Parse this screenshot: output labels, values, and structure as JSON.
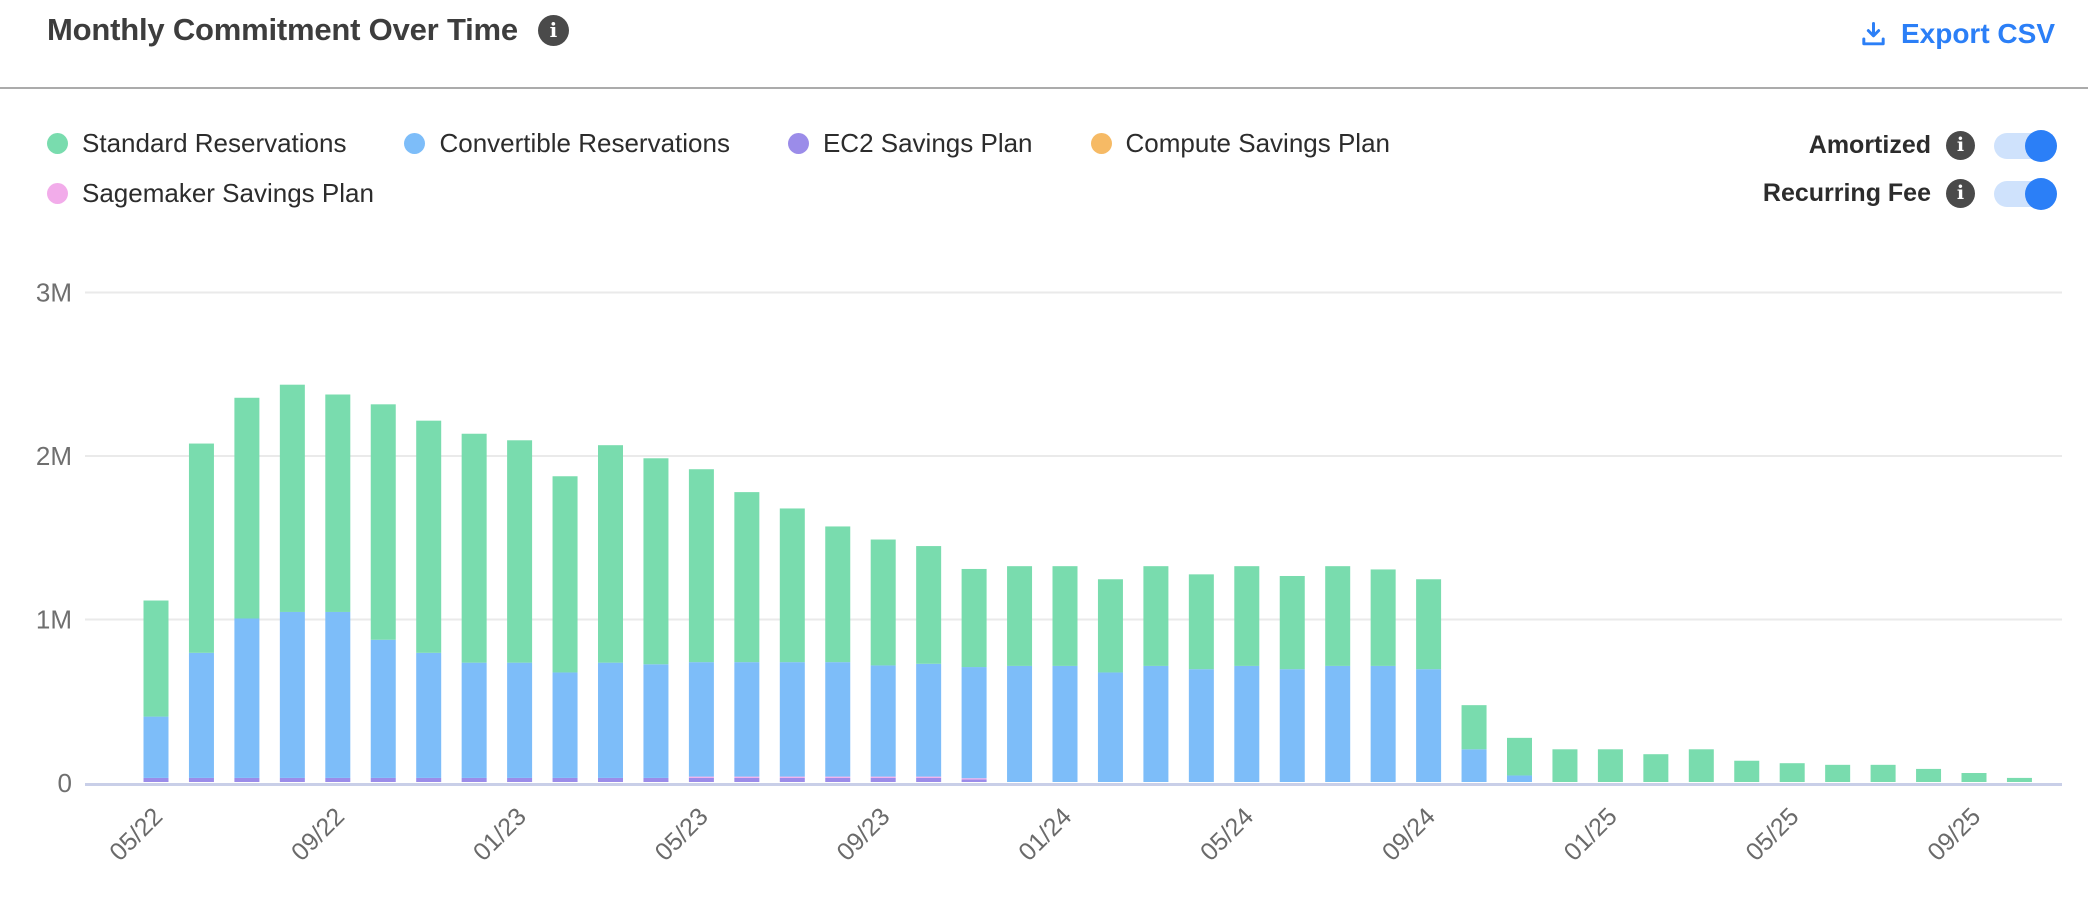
{
  "header": {
    "title": "Monthly Commitment Over Time",
    "info_icon": "info-icon",
    "export_label": "Export CSV",
    "export_icon": "download-icon",
    "accent_color": "#2b7ff7"
  },
  "legend": {
    "items": [
      {
        "label": "Standard Reservations",
        "color": "#79dcae"
      },
      {
        "label": "Convertible Reservations",
        "color": "#7dbdf9"
      },
      {
        "label": "EC2 Savings Plan",
        "color": "#9b8ce9"
      },
      {
        "label": "Compute Savings Plan",
        "color": "#f6ba65"
      },
      {
        "label": "Sagemaker Savings Plan",
        "color": "#f2acea"
      }
    ]
  },
  "toggles": [
    {
      "label": "Amortized",
      "state": "on"
    },
    {
      "label": "Recurring Fee",
      "state": "on"
    }
  ],
  "chart_data": {
    "type": "bar",
    "stacked": true,
    "title": "Monthly Commitment Over Time",
    "unit": "M (USD)",
    "grid": true,
    "legend_position": "top-left",
    "ylim": [
      0,
      3
    ],
    "y_ticks": [
      {
        "value": 0,
        "label": "0"
      },
      {
        "value": 1,
        "label": "1M"
      },
      {
        "value": 2,
        "label": "2M"
      },
      {
        "value": 3,
        "label": "3M"
      }
    ],
    "x_label_every": 4,
    "x_tick_labels": [
      "05/22",
      "09/22",
      "01/23",
      "05/23",
      "09/23",
      "01/24",
      "05/24",
      "09/24",
      "01/25",
      "05/25",
      "09/25"
    ],
    "categories": [
      "05/22",
      "06/22",
      "07/22",
      "08/22",
      "09/22",
      "10/22",
      "11/22",
      "12/22",
      "01/23",
      "02/23",
      "03/23",
      "04/23",
      "05/23",
      "06/23",
      "07/23",
      "08/23",
      "09/23",
      "10/23",
      "11/23",
      "12/23",
      "01/24",
      "02/24",
      "03/24",
      "04/24",
      "05/24",
      "06/24",
      "07/24",
      "08/24",
      "09/24",
      "10/24",
      "11/24",
      "12/24",
      "01/25",
      "02/25",
      "03/25",
      "04/25",
      "05/25",
      "06/25",
      "07/25",
      "08/25",
      "09/25",
      "10/25"
    ],
    "stack_order_bottom_to_top": [
      "EC2 Savings Plan",
      "Sagemaker Savings Plan",
      "Compute Savings Plan",
      "Convertible Reservations",
      "Standard Reservations"
    ],
    "series": [
      {
        "name": "Standard Reservations",
        "color": "#79dcae",
        "values": [
          0.71,
          1.28,
          1.35,
          1.39,
          1.33,
          1.44,
          1.42,
          1.4,
          1.36,
          1.2,
          1.33,
          1.26,
          1.18,
          1.04,
          0.94,
          0.83,
          0.77,
          0.72,
          0.6,
          0.61,
          0.61,
          0.57,
          0.61,
          0.58,
          0.61,
          0.57,
          0.61,
          0.59,
          0.55,
          0.27,
          0.23,
          0.2,
          0.2,
          0.17,
          0.2,
          0.13,
          0.115,
          0.105,
          0.105,
          0.08,
          0.055,
          0.025
        ]
      },
      {
        "name": "Convertible Reservations",
        "color": "#7dbdf9",
        "values": [
          0.375,
          0.765,
          0.975,
          1.015,
          1.015,
          0.845,
          0.765,
          0.705,
          0.705,
          0.645,
          0.705,
          0.695,
          0.7,
          0.7,
          0.7,
          0.7,
          0.68,
          0.69,
          0.68,
          0.71,
          0.71,
          0.67,
          0.71,
          0.69,
          0.71,
          0.69,
          0.71,
          0.71,
          0.69,
          0.2,
          0.04,
          0,
          0,
          0,
          0,
          0,
          0,
          0,
          0,
          0,
          0,
          0
        ]
      },
      {
        "name": "EC2 Savings Plan",
        "color": "#9b8ce9",
        "values": [
          0.025,
          0.025,
          0.025,
          0.025,
          0.025,
          0.025,
          0.025,
          0.025,
          0.025,
          0.025,
          0.025,
          0.025,
          0.025,
          0.025,
          0.025,
          0.025,
          0.025,
          0.025,
          0.015,
          0,
          0,
          0,
          0,
          0,
          0,
          0,
          0,
          0,
          0,
          0,
          0,
          0,
          0,
          0,
          0,
          0,
          0,
          0,
          0,
          0,
          0,
          0
        ]
      },
      {
        "name": "Compute Savings Plan",
        "color": "#f6ba65",
        "values": [
          0,
          0,
          0,
          0,
          0,
          0,
          0,
          0,
          0,
          0,
          0,
          0,
          0,
          0,
          0,
          0,
          0,
          0,
          0,
          0,
          0,
          0,
          0,
          0,
          0,
          0,
          0,
          0,
          0,
          0,
          0,
          0,
          0,
          0,
          0,
          0,
          0,
          0,
          0,
          0,
          0,
          0
        ]
      },
      {
        "name": "Sagemaker Savings Plan",
        "color": "#f2acea",
        "values": [
          0,
          0,
          0,
          0,
          0,
          0,
          0,
          0,
          0,
          0,
          0,
          0,
          0.008,
          0.008,
          0.008,
          0.008,
          0.008,
          0.008,
          0.008,
          0,
          0,
          0,
          0,
          0,
          0,
          0,
          0,
          0,
          0,
          0,
          0,
          0,
          0,
          0,
          0,
          0,
          0,
          0,
          0,
          0,
          0,
          0
        ]
      }
    ]
  }
}
